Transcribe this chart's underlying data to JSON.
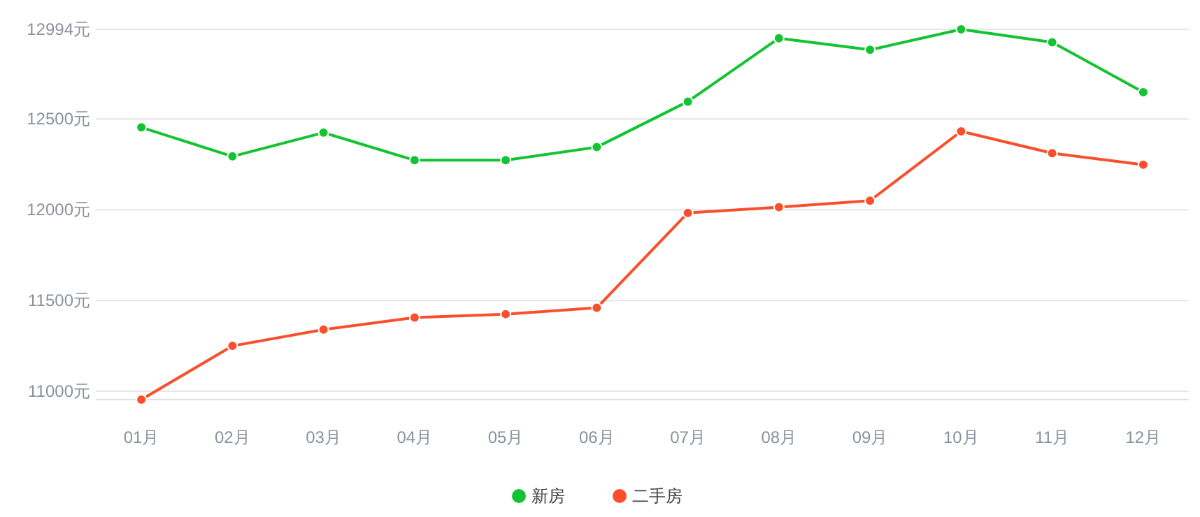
{
  "chart_data": {
    "type": "line",
    "categories": [
      "01月",
      "02月",
      "03月",
      "04月",
      "05月",
      "06月",
      "07月",
      "08月",
      "09月",
      "10月",
      "11月",
      "12月"
    ],
    "series": [
      {
        "name": "新房",
        "color": "#13c331",
        "values": [
          12454,
          12294,
          12425,
          12273,
          12273,
          12345,
          12596,
          12945,
          12881,
          12994,
          12923,
          12648
        ]
      },
      {
        "name": "二手房",
        "color": "#fa4f2d",
        "values": [
          10954,
          11250,
          11340,
          11406,
          11425,
          11460,
          11983,
          12014,
          12050,
          12432,
          12312,
          12248
        ]
      }
    ],
    "ylim": [
      10954,
      12994
    ],
    "yticks": [
      {
        "value": 11000,
        "label": "11000元"
      },
      {
        "value": 11500,
        "label": "11500元"
      },
      {
        "value": 12000,
        "label": "12000元"
      },
      {
        "value": 12500,
        "label": "12500元"
      },
      {
        "value": 12994,
        "label": "12994元"
      }
    ],
    "grid": "y",
    "legend": "bottom",
    "marker": "circle",
    "line_style": "solid"
  }
}
